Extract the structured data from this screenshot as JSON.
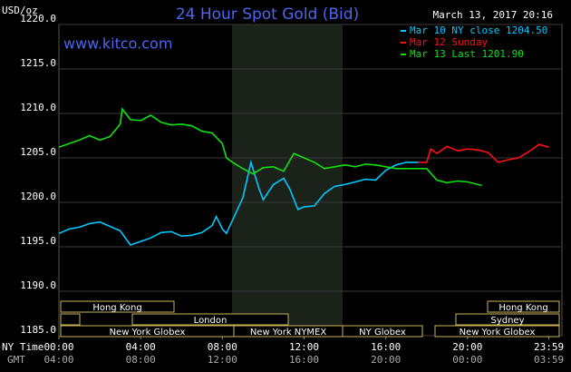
{
  "chart_data": {
    "type": "line",
    "title": "24 Hour Spot Gold (Bid)",
    "y_label": "USD/oz",
    "timestamp": "March 13, 2017 20:16",
    "website": "www.kitco.com",
    "x_row_label": "NY Time",
    "x2_row_label": "GMT",
    "xlim": [
      0,
      24
    ],
    "xticks": [
      {
        "value": 0,
        "label": "00:00"
      },
      {
        "value": 4,
        "label": "04:00"
      },
      {
        "value": 8,
        "label": "08:00"
      },
      {
        "value": 12,
        "label": "12:00"
      },
      {
        "value": 16,
        "label": "16:00"
      },
      {
        "value": 20,
        "label": "20:00"
      },
      {
        "value": 23.98,
        "label": "23:59"
      }
    ],
    "x2ticklabels": [
      "04:00",
      "08:00",
      "12:00",
      "16:00",
      "20:00",
      "00:00",
      "03:59"
    ],
    "ylim": [
      1185,
      1220
    ],
    "yticks": [
      {
        "value": 1185,
        "label": "1185.0"
      },
      {
        "value": 1190,
        "label": "1190.0"
      },
      {
        "value": 1195,
        "label": "1195.0"
      },
      {
        "value": 1200,
        "label": "1200.0"
      },
      {
        "value": 1205,
        "label": "1205.0"
      },
      {
        "value": 1210,
        "label": "1210.0"
      },
      {
        "value": 1215,
        "label": "1215.0"
      },
      {
        "value": 1220,
        "label": "1220.0"
      }
    ],
    "grid": true,
    "sessions": [
      "Hong Kong",
      "London",
      "New York Globex",
      "New York NYMEX",
      "NY Globex",
      "Sydney",
      "Hong Kong",
      "New York Globex"
    ],
    "series": [
      {
        "name": "Mar 10 NY close 1204.50",
        "color": "#00c8ff",
        "x": [
          0,
          0.5,
          1,
          1.5,
          2,
          2.5,
          3,
          3.5,
          4,
          4.5,
          5,
          5.5,
          6,
          6.5,
          7,
          7.5,
          7.7,
          8,
          8.2,
          8.5,
          9,
          9.4,
          9.8,
          10,
          10.5,
          11,
          11.3,
          11.7,
          12,
          12.5,
          13,
          13.5,
          14,
          14.5,
          15,
          15.5,
          16,
          16.5,
          17,
          17.6
        ],
        "values": [
          1196.5,
          1197,
          1197.2,
          1197.6,
          1197.8,
          1197.3,
          1196.8,
          1195.2,
          1195.6,
          1196,
          1196.6,
          1196.7,
          1196.2,
          1196.3,
          1196.6,
          1197.4,
          1198.4,
          1197,
          1196.5,
          1198,
          1200.5,
          1204.5,
          1201.5,
          1200.3,
          1202,
          1202.7,
          1201.5,
          1199.2,
          1199.5,
          1199.6,
          1201,
          1201.8,
          1202,
          1202.3,
          1202.6,
          1202.5,
          1203.6,
          1204.2,
          1204.5,
          1204.5
        ]
      },
      {
        "name": "Mar 12 Sunday",
        "color": "#ff1010",
        "x": [
          17.6,
          18,
          18.2,
          18.5,
          19,
          19.5,
          20,
          20.5,
          21,
          21.5,
          22,
          22.5,
          23,
          23.5,
          23.98
        ],
        "values": [
          1204.5,
          1204.5,
          1206,
          1205.5,
          1206.3,
          1205.8,
          1206,
          1205.9,
          1205.6,
          1204.5,
          1204.8,
          1205,
          1205.7,
          1206.5,
          1206.2
        ]
      },
      {
        "name": "Mar 13 Last 1201.90",
        "color": "#10e010",
        "x": [
          0,
          0.5,
          1,
          1.5,
          2,
          2.5,
          3,
          3.1,
          3.5,
          4,
          4.5,
          5,
          5.5,
          6,
          6.5,
          7,
          7.5,
          8,
          8.2,
          8.5,
          9,
          9.5,
          10,
          10.5,
          11,
          11.5,
          12,
          12.5,
          13,
          13.5,
          14,
          14.5,
          15,
          15.5,
          16,
          16.5,
          17,
          18,
          18.5,
          19,
          19.5,
          20,
          20.7
        ],
        "values": [
          1206.2,
          1206.6,
          1207,
          1207.5,
          1207,
          1207.4,
          1208.8,
          1210.5,
          1209.3,
          1209.2,
          1209.8,
          1209,
          1208.7,
          1208.8,
          1208.6,
          1208,
          1207.8,
          1206.6,
          1205,
          1204.5,
          1203.8,
          1203.2,
          1203.9,
          1204,
          1203.5,
          1205.5,
          1205,
          1204.5,
          1203.8,
          1204,
          1204.2,
          1204,
          1204.3,
          1204.2,
          1204,
          1203.8,
          1203.8,
          1203.8,
          1202.5,
          1202.2,
          1202.4,
          1202.3,
          1201.9
        ]
      }
    ]
  }
}
